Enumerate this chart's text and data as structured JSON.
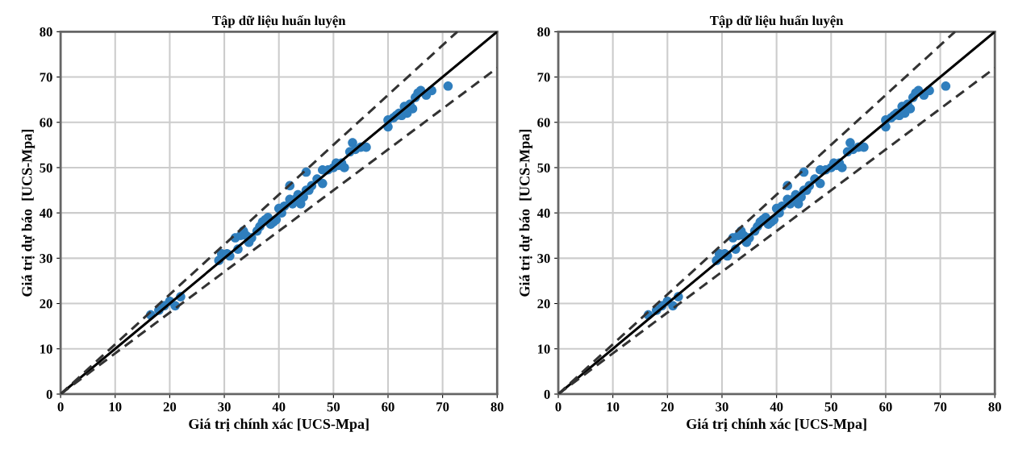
{
  "chart_data": [
    {
      "type": "scatter",
      "title": "Tập dữ liệu huấn luyện",
      "xlabel": "Giá trị chính xác [UCS-Mpa]",
      "ylabel": "Giá trị dự báo  [UCS-Mpa]",
      "xlim": [
        0,
        80
      ],
      "ylim": [
        0,
        80
      ],
      "xticks": [
        0,
        10,
        20,
        30,
        40,
        50,
        60,
        70,
        80
      ],
      "yticks": [
        0,
        10,
        20,
        30,
        40,
        50,
        60,
        70,
        80
      ],
      "grid": true,
      "series": [
        {
          "color": "#2f7ebd",
          "marker": "circle",
          "x": [
            16.5,
            18,
            19,
            20,
            22,
            21,
            29,
            29.5,
            30.5,
            31,
            32,
            32.5,
            33,
            33.5,
            34,
            34.5,
            35,
            36,
            36.5,
            37,
            37.5,
            38,
            38.5,
            39,
            39.5,
            40,
            40.5,
            41,
            42,
            42,
            42.5,
            43,
            43.5,
            44,
            44.5,
            45,
            45,
            45.5,
            46,
            47,
            48,
            48,
            49,
            50,
            50.5,
            51,
            51.5,
            52,
            53,
            53.5,
            54,
            55,
            56,
            60,
            60,
            61,
            61.5,
            62,
            62.5,
            63,
            63.5,
            64,
            64.5,
            65,
            65.5,
            66,
            67,
            68,
            71
          ],
          "values": [
            17.5,
            18.5,
            19.5,
            20.5,
            21.5,
            19.5,
            29.5,
            31,
            31,
            30.5,
            34.5,
            32,
            35,
            36,
            35,
            33.5,
            34.5,
            36,
            37,
            38,
            38.5,
            39,
            37.5,
            38,
            38.5,
            41,
            40,
            41.5,
            46,
            43,
            42,
            43,
            44,
            42,
            43.5,
            45,
            49,
            45,
            46,
            47.5,
            46.5,
            49.5,
            49.5,
            50,
            51,
            50.5,
            51,
            50,
            53.5,
            55.5,
            54,
            54.5,
            54.5,
            59,
            60.5,
            61,
            61.5,
            62,
            61.5,
            63.5,
            62,
            64,
            63,
            65.5,
            66.5,
            67,
            66,
            67,
            68
          ]
        },
        {
          "type": "line",
          "color": "#000000",
          "line_style": "solid",
          "marker": "none",
          "x": [
            0,
            80
          ],
          "values": [
            0,
            80
          ]
        },
        {
          "type": "line",
          "color": "#333333",
          "line_style": "dashed",
          "marker": "none",
          "x": [
            0,
            72.7
          ],
          "values": [
            0,
            80
          ]
        },
        {
          "type": "line",
          "color": "#333333",
          "line_style": "dashed",
          "marker": "none",
          "x": [
            0,
            80
          ],
          "values": [
            0,
            72
          ]
        }
      ]
    },
    {
      "type": "scatter",
      "title": "Tập dữ liệu huấn luyện",
      "xlabel": "Giá trị chính xác [UCS-Mpa]",
      "ylabel": "Giá trị dự báo  [UCS-Mpa]",
      "xlim": [
        0,
        80
      ],
      "ylim": [
        0,
        80
      ],
      "xticks": [
        0,
        10,
        20,
        30,
        40,
        50,
        60,
        70,
        80
      ],
      "yticks": [
        0,
        10,
        20,
        30,
        40,
        50,
        60,
        70,
        80
      ],
      "grid": true,
      "series": [
        {
          "color": "#2f7ebd",
          "marker": "circle",
          "x": [
            16.5,
            18,
            19,
            20,
            22,
            21,
            29,
            29.5,
            30.5,
            31,
            32,
            32.5,
            33,
            33.5,
            34,
            34.5,
            35,
            36,
            36.5,
            37,
            37.5,
            38,
            38.5,
            39,
            39.5,
            40,
            40.5,
            41,
            42,
            42,
            42.5,
            43,
            43.5,
            44,
            44.5,
            45,
            45,
            45.5,
            46,
            47,
            48,
            48,
            49,
            50,
            50.5,
            51,
            51.5,
            52,
            53,
            53.5,
            54,
            55,
            56,
            60,
            60,
            61,
            61.5,
            62,
            62.5,
            63,
            63.5,
            64,
            64.5,
            65,
            65.5,
            66,
            67,
            68,
            71
          ],
          "values": [
            17.5,
            18.5,
            19.5,
            20.5,
            21.5,
            19.5,
            29.5,
            31,
            31,
            30.5,
            34.5,
            32,
            35,
            36,
            35,
            33.5,
            34.5,
            36,
            37,
            38,
            38.5,
            39,
            37.5,
            38,
            38.5,
            41,
            40,
            41.5,
            46,
            43,
            42,
            43,
            44,
            42,
            43.5,
            45,
            49,
            45,
            46,
            47.5,
            46.5,
            49.5,
            49.5,
            50,
            51,
            50.5,
            51,
            50,
            53.5,
            55.5,
            54,
            54.5,
            54.5,
            59,
            60.5,
            61,
            61.5,
            62,
            61.5,
            63.5,
            62,
            64,
            63,
            65.5,
            66.5,
            67,
            66,
            67,
            68
          ]
        },
        {
          "type": "line",
          "color": "#000000",
          "line_style": "solid",
          "marker": "none",
          "x": [
            0,
            80
          ],
          "values": [
            0,
            80
          ]
        },
        {
          "type": "line",
          "color": "#333333",
          "line_style": "dashed",
          "marker": "none",
          "x": [
            0,
            72.7
          ],
          "values": [
            0,
            80
          ]
        },
        {
          "type": "line",
          "color": "#333333",
          "line_style": "dashed",
          "marker": "none",
          "x": [
            0,
            80
          ],
          "values": [
            0,
            72
          ]
        }
      ]
    }
  ]
}
